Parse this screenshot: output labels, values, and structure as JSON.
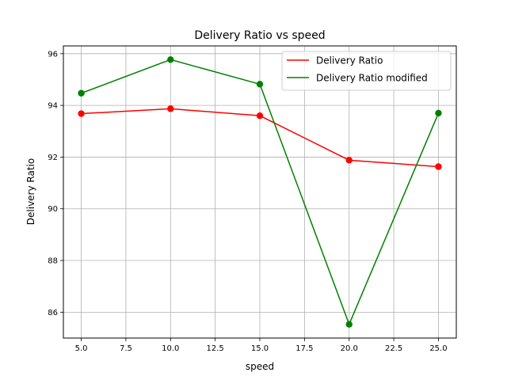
{
  "chart_data": {
    "type": "line",
    "title": "Delivery Ratio vs speed",
    "xlabel": "speed",
    "ylabel": "Delivery Ratio",
    "x": [
      5,
      10,
      15,
      20,
      25
    ],
    "xlim": [
      4,
      26
    ],
    "ylim": [
      85,
      96.3
    ],
    "xticks": [
      "5.0",
      "7.5",
      "10.0",
      "12.5",
      "15.0",
      "17.5",
      "20.0",
      "22.5",
      "25.0"
    ],
    "xtick_values": [
      5,
      7.5,
      10,
      12.5,
      15,
      17.5,
      20,
      22.5,
      25
    ],
    "yticks": [
      "86",
      "88",
      "90",
      "92",
      "94",
      "96"
    ],
    "ytick_values": [
      86,
      88,
      90,
      92,
      94,
      96
    ],
    "grid": true,
    "legend_position": "top-right",
    "series": [
      {
        "name": "Delivery Ratio",
        "color": "#ff0000",
        "values": [
          93.68,
          93.87,
          93.6,
          91.88,
          91.63
        ]
      },
      {
        "name": "Delivery Ratio modified",
        "color": "#008000",
        "values": [
          94.47,
          95.77,
          94.82,
          85.53,
          93.7
        ]
      }
    ]
  }
}
